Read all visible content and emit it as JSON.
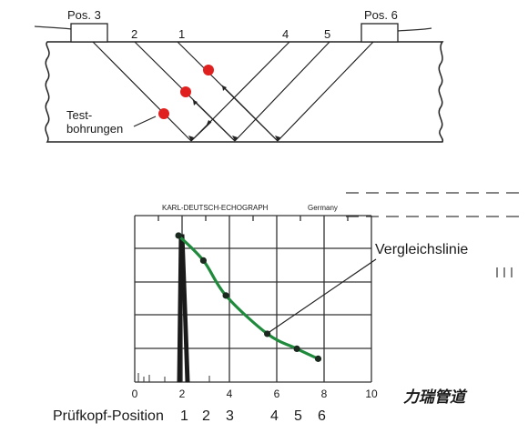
{
  "top_diagram": {
    "probe_left_label": "Pos. 3",
    "probe_right_label": "Pos. 6",
    "beam_labels": [
      "2",
      "1",
      "4",
      "5"
    ],
    "drill_label_line1": "Test-",
    "drill_label_line2": "bohrungen",
    "drill_color": "#e0201e"
  },
  "chart": {
    "screen_title": "KARL-DEUTSCH-ECHOGRAPH",
    "screen_brand": "Germany",
    "curve_label": "Vergleichslinie",
    "curve_color": "#1f8a3c",
    "x_ticks": [
      "0",
      "2",
      "4",
      "6",
      "8",
      "10"
    ],
    "position_caption": "Prüfkopf-Position",
    "position_numbers": [
      "1",
      "2",
      "3",
      "4",
      "5",
      "6"
    ]
  },
  "chart_data": {
    "type": "line",
    "x_ticks": [
      0,
      2,
      4,
      6,
      8,
      10
    ],
    "xlim": [
      0,
      10
    ],
    "series": [
      {
        "name": "Vergleichslinie",
        "x": [
          1.85,
          2.9,
          3.85,
          5.6,
          6.85,
          7.75
        ],
        "y": [
          4.4,
          3.65,
          2.6,
          1.45,
          1.0,
          0.7
        ]
      }
    ]
  },
  "watermark": "力瑞管道"
}
